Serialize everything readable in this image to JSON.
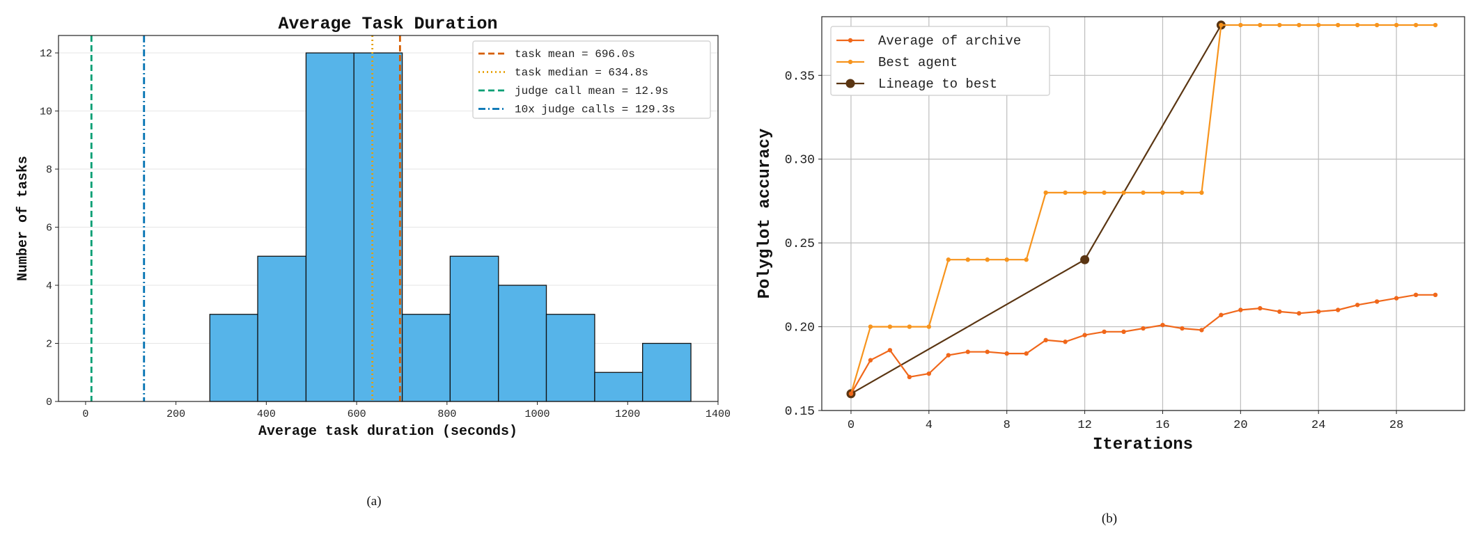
{
  "chart_data": [
    {
      "type": "bar",
      "title": "Average Task Duration",
      "xlabel": "Average task duration (seconds)",
      "ylabel": "Number of tasks",
      "xlim": [
        -60,
        1400
      ],
      "ylim": [
        0,
        12.6
      ],
      "xticks": [
        0,
        200,
        400,
        600,
        800,
        1000,
        1200,
        1400
      ],
      "yticks": [
        0,
        2,
        4,
        6,
        8,
        10,
        12
      ],
      "grid": "horizontal",
      "legend_position": "top-right",
      "bar_color": "#56b4e9",
      "bins": [
        {
          "start": 275,
          "end": 381,
          "count": 3
        },
        {
          "start": 381,
          "end": 488,
          "count": 5
        },
        {
          "start": 488,
          "end": 594,
          "count": 12
        },
        {
          "start": 594,
          "end": 701,
          "count": 12
        },
        {
          "start": 701,
          "end": 807,
          "count": 3
        },
        {
          "start": 807,
          "end": 914,
          "count": 5
        },
        {
          "start": 914,
          "end": 1020,
          "count": 4
        },
        {
          "start": 1020,
          "end": 1127,
          "count": 3
        },
        {
          "start": 1127,
          "end": 1233,
          "count": 1
        },
        {
          "start": 1233,
          "end": 1340,
          "count": 2
        }
      ],
      "reference_lines": [
        {
          "label": "task mean = 696.0s",
          "x": 696.0,
          "color": "#d55e00",
          "style": "dashed"
        },
        {
          "label": "task median = 634.8s",
          "x": 634.8,
          "color": "#e69f00",
          "style": "dotted"
        },
        {
          "label": "judge call mean = 12.9s",
          "x": 12.9,
          "color": "#009e73",
          "style": "dashed"
        },
        {
          "label": "10x judge calls = 129.3s",
          "x": 129.3,
          "color": "#0072b2",
          "style": "dashdot"
        }
      ],
      "caption": "(a)"
    },
    {
      "type": "line",
      "title": "",
      "xlabel": "Iterations",
      "ylabel": "Polyglot accuracy",
      "xlim": [
        -1.5,
        31.5
      ],
      "ylim": [
        0.15,
        0.385
      ],
      "xticks": [
        0,
        4,
        8,
        12,
        16,
        20,
        24,
        28
      ],
      "yticks": [
        0.15,
        0.2,
        0.25,
        0.3,
        0.35
      ],
      "ytick_labels": [
        "0.15",
        "0.20",
        "0.25",
        "0.30",
        "0.35"
      ],
      "grid": "both",
      "legend_position": "top-left",
      "series": [
        {
          "name": "Average of archive",
          "color": "#f0671a",
          "marker": "small-circle",
          "x": [
            0,
            1,
            2,
            3,
            4,
            5,
            6,
            7,
            8,
            9,
            10,
            11,
            12,
            13,
            14,
            15,
            16,
            17,
            18,
            19,
            20,
            21,
            22,
            23,
            24,
            25,
            26,
            27,
            28,
            29,
            30
          ],
          "y": [
            0.16,
            0.18,
            0.186,
            0.17,
            0.172,
            0.183,
            0.185,
            0.185,
            0.184,
            0.184,
            0.192,
            0.191,
            0.195,
            0.197,
            0.197,
            0.199,
            0.201,
            0.199,
            0.198,
            0.207,
            0.21,
            0.211,
            0.209,
            0.208,
            0.209,
            0.21,
            0.213,
            0.215,
            0.217,
            0.219,
            0.219
          ]
        },
        {
          "name": "Best agent",
          "color": "#f7941d",
          "marker": "small-circle",
          "x": [
            0,
            1,
            2,
            3,
            4,
            5,
            6,
            7,
            8,
            9,
            10,
            11,
            12,
            13,
            14,
            15,
            16,
            17,
            18,
            19,
            20,
            21,
            22,
            23,
            24,
            25,
            26,
            27,
            28,
            29,
            30
          ],
          "y": [
            0.16,
            0.2,
            0.2,
            0.2,
            0.2,
            0.24,
            0.24,
            0.24,
            0.24,
            0.24,
            0.28,
            0.28,
            0.28,
            0.28,
            0.28,
            0.28,
            0.28,
            0.28,
            0.28,
            0.38,
            0.38,
            0.38,
            0.38,
            0.38,
            0.38,
            0.38,
            0.38,
            0.38,
            0.38,
            0.38,
            0.38
          ]
        },
        {
          "name": "Lineage to best",
          "color": "#5a3512",
          "marker": "large-circle",
          "x": [
            0,
            12,
            19
          ],
          "y": [
            0.16,
            0.24,
            0.38
          ]
        }
      ],
      "caption": "(b)"
    }
  ]
}
